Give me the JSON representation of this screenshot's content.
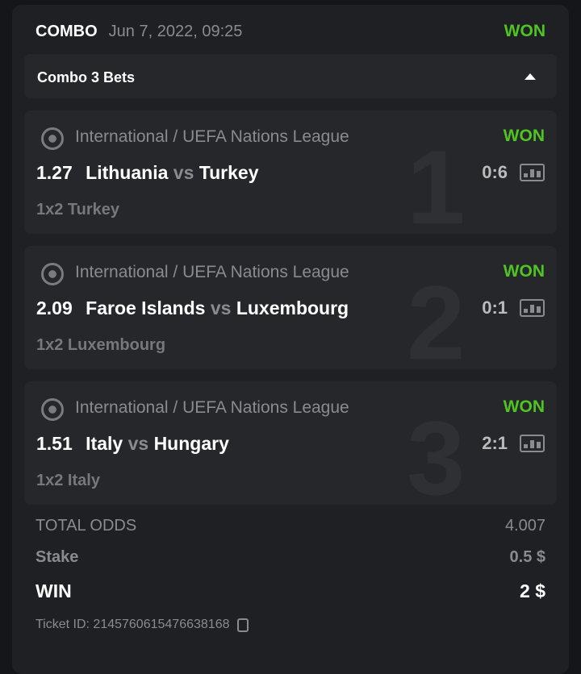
{
  "header": {
    "type": "COMBO",
    "date": "Jun 7, 2022, 09:25",
    "status": "WON"
  },
  "combo_bar": {
    "label": "Combo 3 Bets",
    "toggle_icon": "caret-up-icon"
  },
  "bets": [
    {
      "index": "1",
      "league": "International / UEFA Nations League",
      "status": "WON",
      "odds": "1.27",
      "home": "Lithuania",
      "vs": "vs",
      "away": "Turkey",
      "score": "0:6",
      "pick": "1x2 Turkey"
    },
    {
      "index": "2",
      "league": "International / UEFA Nations League",
      "status": "WON",
      "odds": "2.09",
      "home": "Faroe Islands",
      "vs": "vs",
      "away": "Luxembourg",
      "score": "0:1",
      "pick": "1x2 Luxembourg"
    },
    {
      "index": "3",
      "league": "International / UEFA Nations League",
      "status": "WON",
      "odds": "1.51",
      "home": "Italy",
      "vs": "vs",
      "away": "Hungary",
      "score": "2:1",
      "pick": "1x2 Italy"
    }
  ],
  "summary": {
    "total_odds_label": "TOTAL ODDS",
    "total_odds": "4.007",
    "stake_label": "Stake",
    "stake": "0.5 $",
    "win_label": "WIN",
    "win": "2 $",
    "ticket_label": "Ticket ID: 2145760615476638168"
  },
  "colors": {
    "won": "#4fc521",
    "background": "#1f2024",
    "card": "#26272b"
  }
}
